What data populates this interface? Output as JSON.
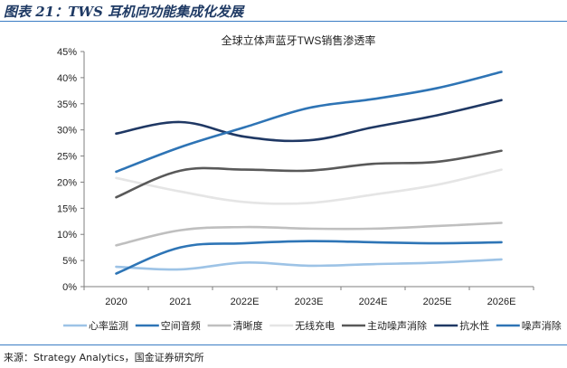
{
  "figure": {
    "title": "图表 21：TWS 耳机向功能集成化发展",
    "source": "来源：Strategy Analytics，国金证券研究所"
  },
  "chart_data": {
    "type": "line",
    "title": "全球立体声蓝牙TWS销售渗透率",
    "categories": [
      "2020",
      "2021",
      "2022E",
      "2023E",
      "2024E",
      "2025E",
      "2026E"
    ],
    "y_ticks": [
      "0%",
      "5%",
      "10%",
      "15%",
      "20%",
      "25%",
      "30%",
      "35%",
      "40%",
      "45%"
    ],
    "ylim": [
      0,
      45
    ],
    "grid": false,
    "legend_position": "bottom",
    "series": [
      {
        "name": "心率监测",
        "color": "#9dc3e6",
        "values": [
          3.8,
          3.3,
          4.6,
          4.0,
          4.3,
          4.6,
          5.2
        ]
      },
      {
        "name": "空间音频",
        "color": "#2e75b6",
        "values": [
          2.5,
          7.5,
          8.3,
          8.7,
          8.5,
          8.3,
          8.5
        ]
      },
      {
        "name": "清晰度",
        "color": "#bfbfbf",
        "values": [
          7.9,
          10.8,
          11.4,
          11.1,
          11.1,
          11.6,
          12.2
        ]
      },
      {
        "name": "无线充电",
        "color": "#e5e5e5",
        "values": [
          20.8,
          18.2,
          16.2,
          16.0,
          17.6,
          19.5,
          22.4
        ]
      },
      {
        "name": "主动噪声消除",
        "color": "#595959",
        "values": [
          17.1,
          22.2,
          22.4,
          22.2,
          23.5,
          23.9,
          26.0
        ]
      },
      {
        "name": "抗水性",
        "color": "#1f3864",
        "values": [
          29.3,
          31.5,
          28.7,
          28.0,
          30.5,
          32.8,
          35.7
        ]
      },
      {
        "name": "噪声消除",
        "color": "#2e74b5",
        "values": [
          22.0,
          26.7,
          30.5,
          34.2,
          35.9,
          38.0,
          41.1
        ]
      }
    ]
  }
}
